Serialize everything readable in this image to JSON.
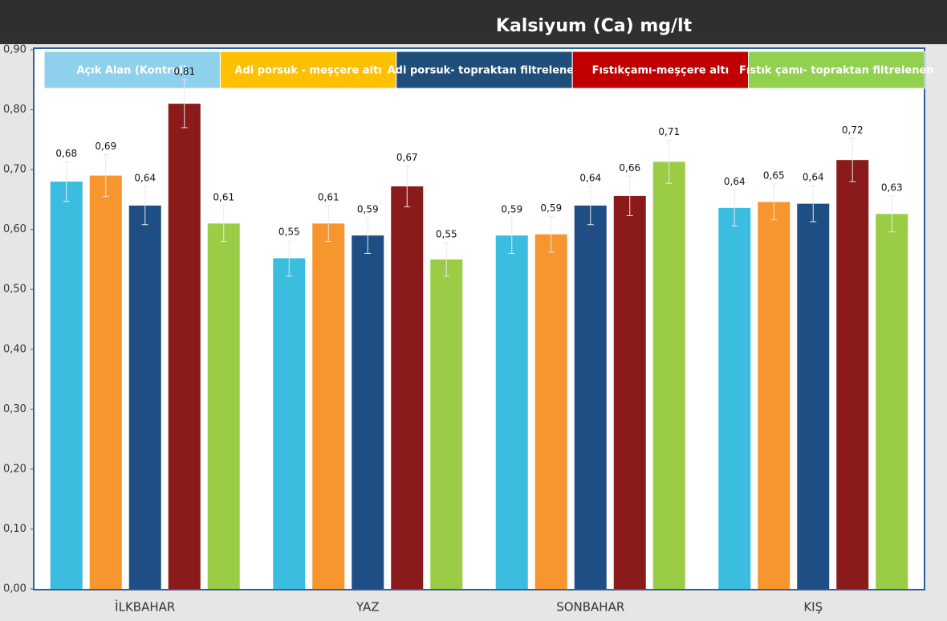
{
  "chart_data": {
    "type": "bar",
    "title": "Kalsiyum (Ca) mg/lt",
    "categories": [
      "İLKBAHAR",
      "YAZ",
      "SONBAHAR",
      "KIŞ"
    ],
    "series": [
      {
        "name": "Açık Alan (Kontrol)",
        "color": "#3bbde0",
        "legend_color": "#8fd0ec",
        "values": [
          0.68,
          0.552,
          0.59,
          0.636
        ],
        "value_labels": [
          "0,68",
          "0,55",
          "0,59",
          "0,64"
        ],
        "errors": [
          0.033,
          0.03,
          0.03,
          0.03
        ]
      },
      {
        "name": "Adi porsuk - meşçere altı",
        "color": "#f7962e",
        "legend_color": "#ffc000",
        "values": [
          0.69,
          0.61,
          0.592,
          0.646
        ],
        "value_labels": [
          "0,69",
          "0,61",
          "0,59",
          "0,65"
        ],
        "errors": [
          0.035,
          0.03,
          0.03,
          0.03
        ]
      },
      {
        "name": "Adi porsuk- topraktan filtrelenen",
        "color": "#1f4e85",
        "legend_color": "#1f4e7a",
        "values": [
          0.64,
          0.59,
          0.64,
          0.643
        ],
        "value_labels": [
          "0,64",
          "0,59",
          "0,64",
          "0,64"
        ],
        "errors": [
          0.032,
          0.03,
          0.032,
          0.03
        ]
      },
      {
        "name": "Fıstıkçamı-meşçere altı",
        "color": "#8b1a1a",
        "legend_color": "#c00000",
        "values": [
          0.81,
          0.672,
          0.656,
          0.716
        ],
        "value_labels": [
          "0,81",
          "0,67",
          "0,66",
          "0,72"
        ],
        "errors": [
          0.04,
          0.034,
          0.033,
          0.036
        ]
      },
      {
        "name": "Fıstık çamı- topraktan filtrelenen",
        "color": "#9acd45",
        "legend_color": "#92d050",
        "values": [
          0.61,
          0.55,
          0.713,
          0.626
        ],
        "value_labels": [
          "0,61",
          "0,55",
          "0,71",
          "0,63"
        ],
        "errors": [
          0.03,
          0.028,
          0.036,
          0.03
        ]
      }
    ],
    "ylim": [
      0,
      0.9
    ],
    "yticks": [
      {
        "value": 0,
        "label": "0,00"
      },
      {
        "value": 0.1,
        "label": "0,10"
      },
      {
        "value": 0.2,
        "label": "0,20"
      },
      {
        "value": 0.3,
        "label": "0,30"
      },
      {
        "value": 0.4,
        "label": "0,40"
      },
      {
        "value": 0.5,
        "label": "0,50"
      },
      {
        "value": 0.6,
        "label": "0,60"
      },
      {
        "value": 0.7,
        "label": "0,70"
      },
      {
        "value": 0.8,
        "label": "0,80"
      },
      {
        "value": 0.9,
        "label": "0,90"
      }
    ],
    "grid": false,
    "legend": "top"
  }
}
